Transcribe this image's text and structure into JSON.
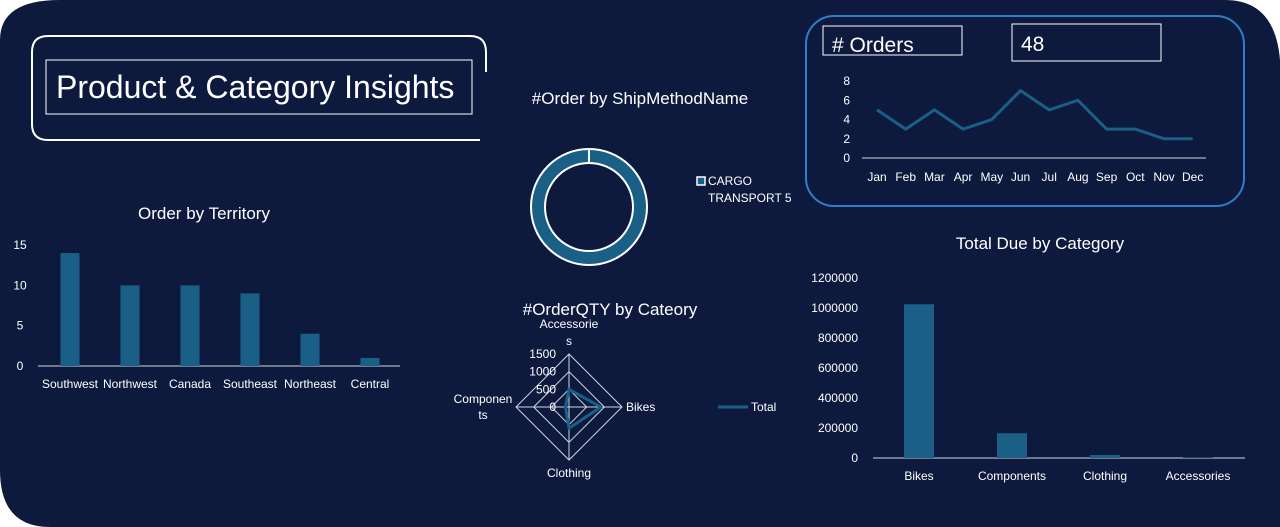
{
  "dashboard_title": "Product & Category Insights",
  "colors": {
    "background": "#0d1a3d",
    "series": "#1a5f85",
    "accent_border": "#2f7ec9",
    "text": "#ffffff"
  },
  "kpi": {
    "label": "# Orders",
    "value": "48"
  },
  "chart_data": [
    {
      "type": "line",
      "title": "",
      "categories": [
        "Jan",
        "Feb",
        "Mar",
        "Apr",
        "May",
        "Jun",
        "Jul",
        "Aug",
        "Sep",
        "Oct",
        "Nov",
        "Dec"
      ],
      "values": [
        5,
        3,
        5,
        3,
        4,
        7,
        5,
        6,
        3,
        3,
        2,
        2
      ],
      "yticks": [
        "8",
        "6",
        "4",
        "2",
        "0"
      ],
      "ylim": [
        0,
        8
      ]
    },
    {
      "type": "pie",
      "title": "#Order by ShipMethodName",
      "slices": [
        {
          "label": "CARGO TRANSPORT 5",
          "value": 48
        }
      ],
      "legend": [
        "CARGO",
        "TRANSPORT 5"
      ]
    },
    {
      "type": "bar",
      "title": "Order by Territory",
      "categories": [
        "Southwest",
        "Northwest",
        "Canada",
        "Southeast",
        "Northeast",
        "Central"
      ],
      "values": [
        14,
        10,
        10,
        9,
        4,
        1
      ],
      "yticks": [
        "15",
        "10",
        "5",
        "0"
      ],
      "ylim": [
        0,
        15
      ]
    },
    {
      "type": "radar",
      "title": "#OrderQTY by Cateory",
      "axes": [
        {
          "name": "Accessories",
          "label_lines": [
            "Accessorie",
            "s"
          ],
          "value": 500
        },
        {
          "name": "Bikes",
          "label_lines": [
            "Bikes"
          ],
          "value": 900
        },
        {
          "name": "Clothing",
          "label_lines": [
            "Clothing"
          ],
          "value": 600
        },
        {
          "name": "Components",
          "label_lines": [
            "Componen",
            "ts"
          ],
          "value": 100
        }
      ],
      "rticks": [
        "1500",
        "1000",
        "500",
        "0"
      ],
      "rlim": [
        0,
        1500
      ],
      "series_name": "Total"
    },
    {
      "type": "bar",
      "title": "Total Due by Category",
      "categories": [
        "Bikes",
        "Components",
        "Clothing",
        "Accessories"
      ],
      "values": [
        1025000,
        165000,
        20000,
        3000
      ],
      "yticks": [
        "1200000",
        "1000000",
        "800000",
        "600000",
        "400000",
        "200000",
        "0"
      ],
      "ylim": [
        0,
        1200000
      ]
    }
  ]
}
